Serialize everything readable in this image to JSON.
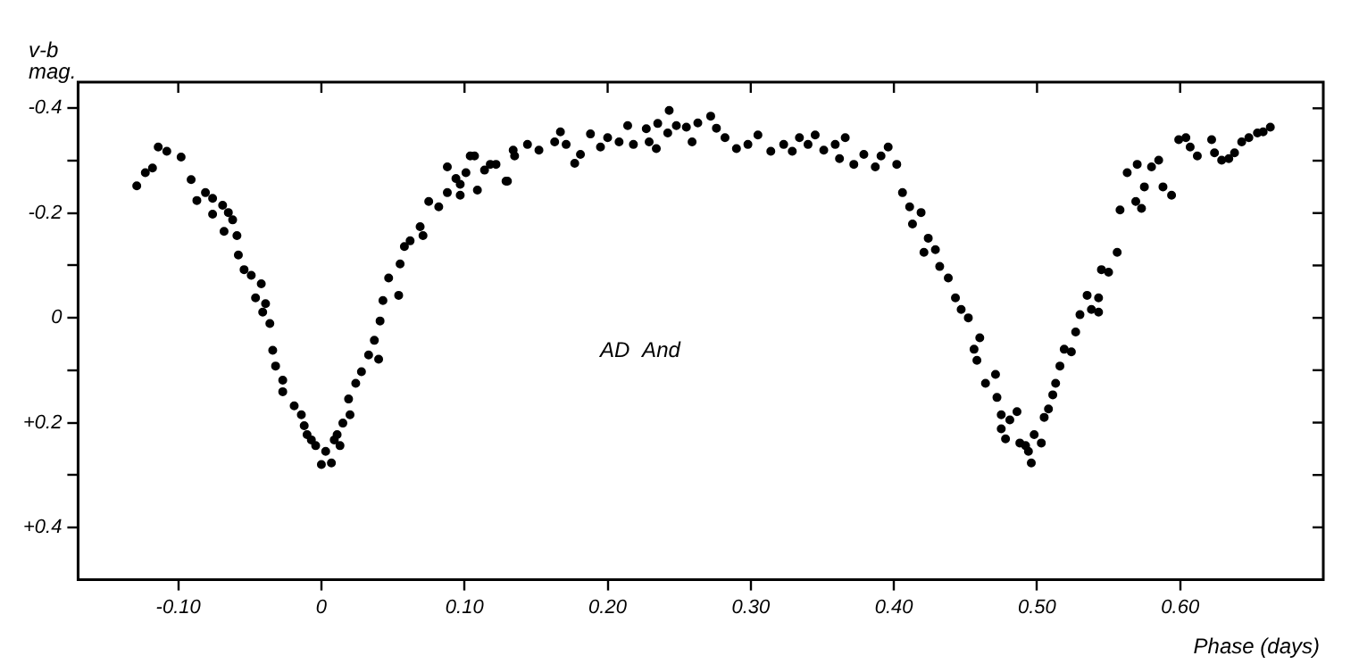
{
  "chart_data": {
    "type": "scatter",
    "xlabel": "Phase (days)",
    "ylabel": "v-b mag.",
    "annotations": [
      "AD And"
    ],
    "xlim": [
      -0.17,
      0.7
    ],
    "ylim": [
      0.5,
      -0.45
    ],
    "xticks": [
      {
        "value": -0.1,
        "label": "-0.10"
      },
      0,
      {
        "value": 0.1,
        "label": "0.10"
      },
      {
        "value": 0.2,
        "label": "0.20"
      },
      {
        "value": 0.3,
        "label": "0.30"
      },
      {
        "value": 0.4,
        "label": "0.40"
      },
      {
        "value": 0.5,
        "label": "0.50"
      },
      {
        "value": 0.6,
        "label": "0.60"
      }
    ],
    "yticks": [
      {
        "value": -0.4,
        "label": "-0.4"
      },
      {
        "value": -0.3,
        "label": null
      },
      {
        "value": -0.2,
        "label": "-0.2"
      },
      {
        "value": -0.1,
        "label": null
      },
      0,
      {
        "value": 0.1,
        "label": null
      },
      {
        "value": 0.2,
        "label": "+0.2"
      },
      {
        "value": 0.3,
        "label": null
      },
      {
        "value": 0.4,
        "label": "+0.4"
      }
    ],
    "grid": false,
    "legend": false,
    "marker": "circle",
    "series": [
      {
        "color": "#000000",
        "x": [
          -0.129,
          -0.123,
          -0.118,
          -0.114,
          -0.108,
          -0.098,
          -0.091,
          -0.087,
          -0.081,
          -0.076,
          -0.076,
          -0.069,
          -0.068,
          -0.065,
          -0.062,
          -0.059,
          -0.058,
          -0.054,
          -0.049,
          -0.042,
          -0.046,
          -0.039,
          -0.041,
          -0.036,
          -0.034,
          -0.032,
          -0.027,
          -0.027,
          -0.019,
          -0.014,
          -0.012,
          -0.01,
          -0.007,
          -0.004,
          0.0,
          0.003,
          0.007,
          0.009,
          0.013,
          0.011,
          0.015,
          0.02,
          0.019,
          0.024,
          0.028,
          0.033,
          0.04,
          0.037,
          0.041,
          0.043,
          0.054,
          0.047,
          0.055,
          0.058,
          0.062,
          0.069,
          0.071,
          0.075,
          0.082,
          0.088,
          0.088,
          0.094,
          0.097,
          0.101,
          0.104,
          0.109,
          0.118,
          0.129,
          0.135,
          0.144,
          0.097,
          0.107,
          0.114,
          0.122,
          0.13,
          0.134,
          0.152,
          0.163,
          0.167,
          0.171,
          0.177,
          0.181,
          0.188,
          0.195,
          0.2,
          0.208,
          0.214,
          0.218,
          0.227,
          0.229,
          0.234,
          0.235,
          0.242,
          0.243,
          0.248,
          0.255,
          0.259,
          0.263,
          0.272,
          0.276,
          0.282,
          0.29,
          0.298,
          0.305,
          0.314,
          0.323,
          0.329,
          0.334,
          0.34,
          0.345,
          0.351,
          0.359,
          0.362,
          0.366,
          0.372,
          0.379,
          0.387,
          0.391,
          0.396,
          0.402,
          0.406,
          0.411,
          0.419,
          0.413,
          0.424,
          0.421,
          0.429,
          0.432,
          0.438,
          0.443,
          0.447,
          0.452,
          0.456,
          0.46,
          0.458,
          0.464,
          0.471,
          0.472,
          0.475,
          0.475,
          0.478,
          0.481,
          0.486,
          0.488,
          0.492,
          0.494,
          0.496,
          0.498,
          0.503,
          0.505,
          0.508,
          0.511,
          0.513,
          0.516,
          0.519,
          0.524,
          0.527,
          0.53,
          0.535,
          0.538,
          0.543,
          0.543,
          0.545,
          0.55,
          0.556,
          0.558,
          0.563,
          0.569,
          0.57,
          0.575,
          0.573,
          0.58,
          0.585,
          0.588,
          0.594,
          0.599,
          0.604,
          0.607,
          0.612,
          0.622,
          0.624,
          0.629,
          0.634,
          0.638,
          0.643,
          0.648,
          0.654,
          0.658,
          0.663
        ],
        "values": [
          -0.252,
          -0.277,
          -0.286,
          -0.326,
          -0.318,
          -0.307,
          -0.264,
          -0.224,
          -0.239,
          -0.228,
          -0.198,
          -0.215,
          -0.165,
          -0.201,
          -0.187,
          -0.157,
          -0.12,
          -0.092,
          -0.081,
          -0.065,
          -0.038,
          -0.027,
          -0.011,
          0.011,
          0.062,
          0.092,
          0.119,
          0.141,
          0.168,
          0.185,
          0.206,
          0.223,
          0.233,
          0.244,
          0.28,
          0.255,
          0.277,
          0.233,
          0.244,
          0.223,
          0.201,
          0.185,
          0.155,
          0.125,
          0.103,
          0.071,
          0.079,
          0.043,
          0.006,
          -0.033,
          -0.043,
          -0.076,
          -0.103,
          -0.136,
          -0.147,
          -0.174,
          -0.157,
          -0.222,
          -0.212,
          -0.239,
          -0.288,
          -0.266,
          -0.234,
          -0.277,
          -0.309,
          -0.244,
          -0.293,
          -0.261,
          -0.309,
          -0.331,
          -0.255,
          -0.309,
          -0.282,
          -0.293,
          -0.261,
          -0.32,
          -0.32,
          -0.336,
          -0.355,
          -0.331,
          -0.295,
          -0.312,
          -0.351,
          -0.326,
          -0.344,
          -0.336,
          -0.367,
          -0.331,
          -0.361,
          -0.336,
          -0.323,
          -0.371,
          -0.353,
          -0.396,
          -0.367,
          -0.364,
          -0.336,
          -0.372,
          -0.385,
          -0.362,
          -0.344,
          -0.323,
          -0.331,
          -0.349,
          -0.318,
          -0.331,
          -0.318,
          -0.344,
          -0.331,
          -0.349,
          -0.32,
          -0.331,
          -0.304,
          -0.344,
          -0.293,
          -0.312,
          -0.288,
          -0.309,
          -0.326,
          -0.293,
          -0.239,
          -0.212,
          -0.201,
          -0.179,
          -0.152,
          -0.125,
          -0.13,
          -0.098,
          -0.076,
          -0.038,
          -0.016,
          0.0,
          0.06,
          0.038,
          0.081,
          0.125,
          0.108,
          0.152,
          0.185,
          0.212,
          0.231,
          0.195,
          0.179,
          0.239,
          0.244,
          0.255,
          0.277,
          0.223,
          0.239,
          0.19,
          0.174,
          0.147,
          0.125,
          0.092,
          0.06,
          0.065,
          0.027,
          -0.006,
          -0.043,
          -0.016,
          -0.011,
          -0.038,
          -0.092,
          -0.087,
          -0.125,
          -0.206,
          -0.277,
          -0.222,
          -0.293,
          -0.25,
          -0.209,
          -0.288,
          -0.301,
          -0.25,
          -0.234,
          -0.34,
          -0.344,
          -0.326,
          -0.309,
          -0.34,
          -0.315,
          -0.301,
          -0.304,
          -0.315,
          -0.336,
          -0.344,
          -0.353,
          -0.355,
          -0.364
        ]
      }
    ]
  }
}
